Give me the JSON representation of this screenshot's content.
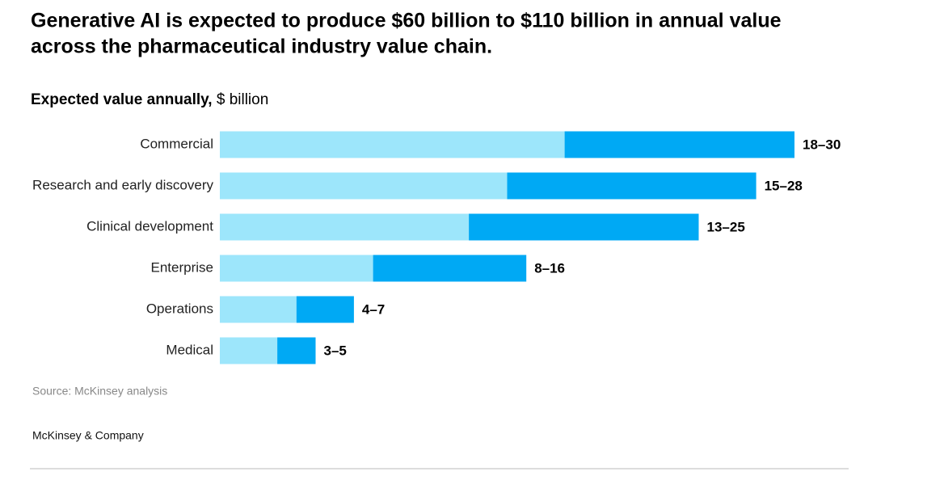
{
  "chart_data": {
    "type": "range-bar",
    "title": [
      "Generative AI is expected to produce $60 billion to $110 billion in annual value",
      "across the pharmaceutical industry value chain."
    ],
    "subtitle": "Expected value annually,",
    "unit": "$ billion",
    "categories": [
      "Commercial",
      "Research and early discovery",
      "Clinical development",
      "Enterprise",
      "Operations",
      "Medical"
    ],
    "low": [
      18,
      15,
      13,
      8,
      4,
      3
    ],
    "high": [
      30,
      28,
      25,
      16,
      7,
      5
    ],
    "value_labels": [
      "18–30",
      "15–28",
      "13–25",
      "8–16",
      "4–7",
      "3–5"
    ],
    "colors": {
      "low": "#9de6fb",
      "high": "#00a9f4"
    },
    "source": "Source: McKinsey analysis",
    "footer": "McKinsey & Company"
  }
}
